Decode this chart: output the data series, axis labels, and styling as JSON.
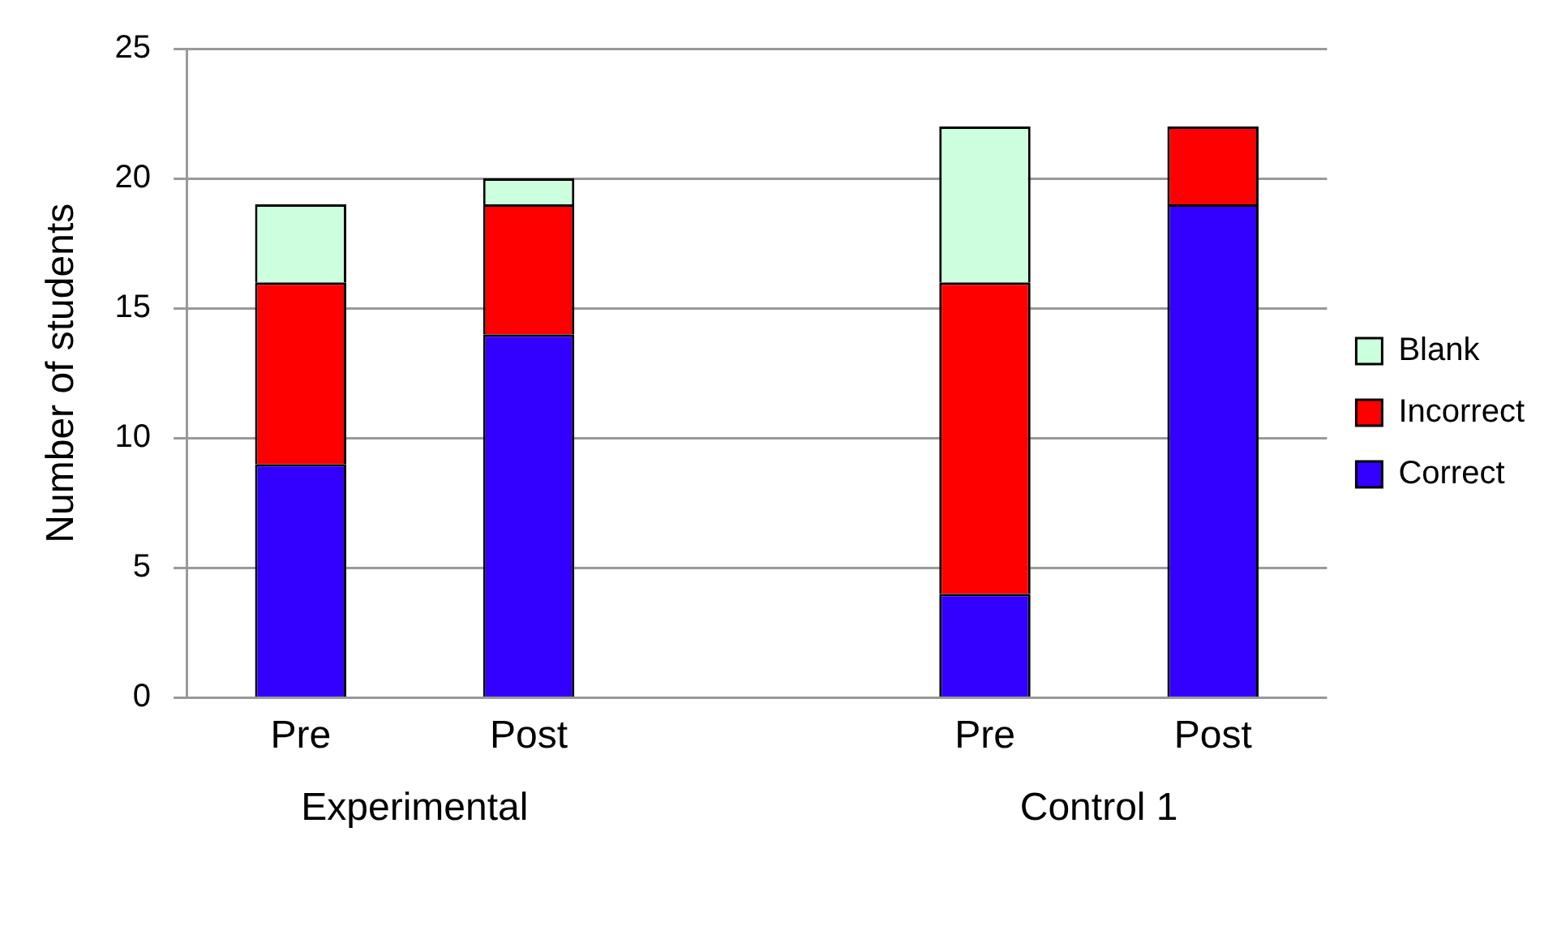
{
  "chart_data": {
    "type": "bar",
    "stacked": true,
    "ylabel": "Number of students",
    "categories": [
      "Pre",
      "Post",
      null,
      "Pre",
      "Post"
    ],
    "series": [
      {
        "name": "Correct",
        "color": "#3300ff",
        "values": [
          9,
          14,
          null,
          4,
          19
        ]
      },
      {
        "name": "Incorrect",
        "color": "#ff0000",
        "values": [
          7,
          5,
          null,
          12,
          3
        ]
      },
      {
        "name": "Blank",
        "color": "#ccffdd",
        "values": [
          3,
          1,
          null,
          6,
          0
        ]
      }
    ],
    "ylim": [
      0,
      25
    ],
    "yticks": [
      0,
      5,
      10,
      15,
      20,
      25
    ],
    "grid": "y",
    "legend": "right",
    "annotations": [
      "Experimental",
      "Control 1"
    ]
  }
}
